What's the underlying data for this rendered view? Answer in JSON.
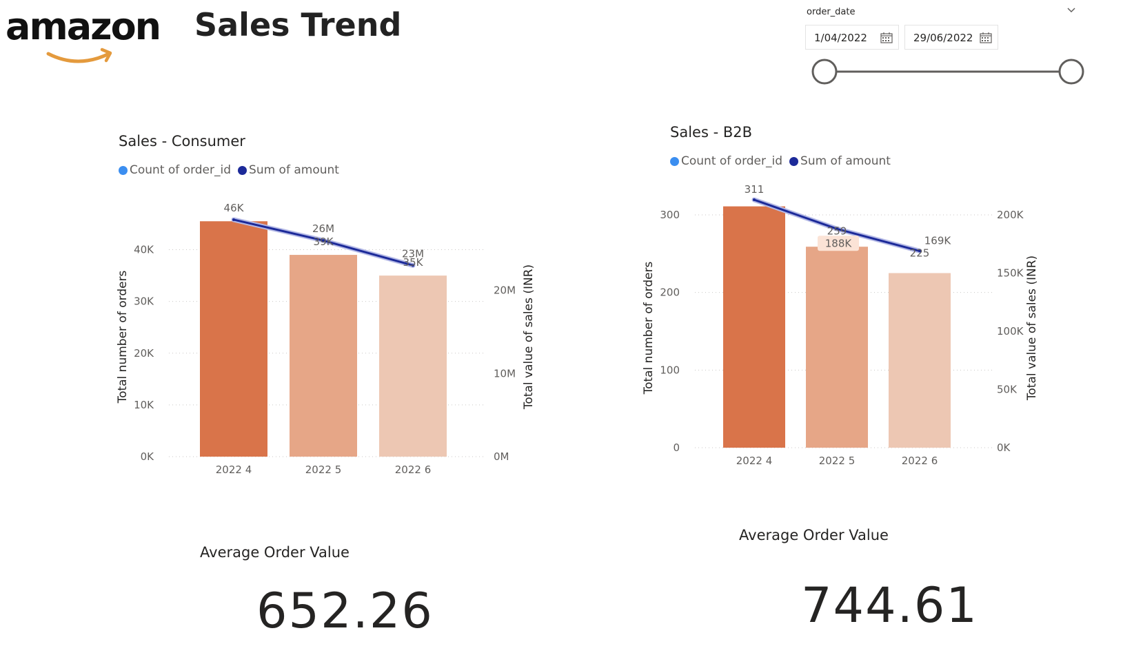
{
  "brand": {
    "logo_text": "amazon",
    "logo_icon": "amazon-smile-arrow"
  },
  "page": {
    "title": "Sales Trend"
  },
  "slicer": {
    "label": "order_date",
    "start_date": "1/04/2022",
    "end_date": "29/06/2022",
    "range_start_fraction": 0,
    "range_end_fraction": 1,
    "icons": {
      "calendar": "calendar-icon",
      "chevron": "chevron-down-icon"
    }
  },
  "colors": {
    "bar_colors": [
      "#d9744a",
      "#e6a687",
      "#edc7b3"
    ],
    "line_dark": "#1c2a99",
    "line_light": "#b4b9e6",
    "legend_count": "#3b8ef0",
    "legend_amount": "#1c2a99",
    "gridline": "#c8c6c4",
    "axis_text": "#605e5c"
  },
  "charts": [
    {
      "id": "consumer",
      "title": "Sales - Consumer",
      "legend": [
        "Count of order_id",
        "Sum of amount"
      ],
      "chart_data": {
        "type": "bar",
        "categories": [
          "2022 4",
          "2022 5",
          "2022 6"
        ],
        "series": [
          {
            "name": "Count of order_id",
            "type": "bar",
            "axis": "left",
            "values": [
              45500,
              39000,
              35000
            ],
            "labels": [
              "46K",
              "39K",
              "35K"
            ]
          },
          {
            "name": "Sum of amount",
            "type": "line",
            "axis": "right",
            "values": [
              28500000,
              26000000,
              23000000
            ],
            "labels": [
              "",
              "26M",
              "23M"
            ]
          }
        ],
        "ylabel": "Total number of orders",
        "y2label": "Total value of sales (INR)",
        "ylim": [
          0,
          45000
        ],
        "y2lim": [
          0,
          28000000
        ],
        "yticks": [
          0,
          10000,
          20000,
          30000,
          40000
        ],
        "ytick_labels": [
          "0K",
          "10K",
          "20K",
          "30K",
          "40K"
        ],
        "y2ticks": [
          0,
          10000000,
          20000000
        ],
        "y2tick_labels": [
          "0M",
          "10M",
          "20M"
        ],
        "grid": true,
        "legend_position": "top-left"
      },
      "kpi": {
        "label": "Average Order Value",
        "value": "652.26"
      }
    },
    {
      "id": "b2b",
      "title": "Sales - B2B",
      "legend": [
        "Count of order_id",
        "Sum of amount"
      ],
      "chart_data": {
        "type": "bar",
        "categories": [
          "2022 4",
          "2022 5",
          "2022 6"
        ],
        "series": [
          {
            "name": "Count of order_id",
            "type": "bar",
            "axis": "left",
            "values": [
              311,
              259,
              225
            ],
            "labels": [
              "311",
              "259",
              "225"
            ]
          },
          {
            "name": "Sum of amount",
            "type": "line",
            "axis": "right",
            "values": [
              213000,
              188000,
              169000
            ],
            "labels": [
              "",
              "188K",
              "169K"
            ]
          }
        ],
        "ylabel": "Total number of orders",
        "y2label": "Total value of sales (INR)",
        "ylim": [
          0,
          300
        ],
        "y2lim": [
          0,
          200000
        ],
        "yticks": [
          0,
          100,
          200,
          300
        ],
        "ytick_labels": [
          "0",
          "100",
          "200",
          "300"
        ],
        "y2ticks": [
          0,
          50000,
          100000,
          150000,
          200000
        ],
        "y2tick_labels": [
          "0K",
          "50K",
          "100K",
          "150K",
          "200K"
        ],
        "grid": true,
        "legend_position": "top-left"
      },
      "kpi": {
        "label": "Average Order Value",
        "value": "744.61"
      }
    }
  ]
}
